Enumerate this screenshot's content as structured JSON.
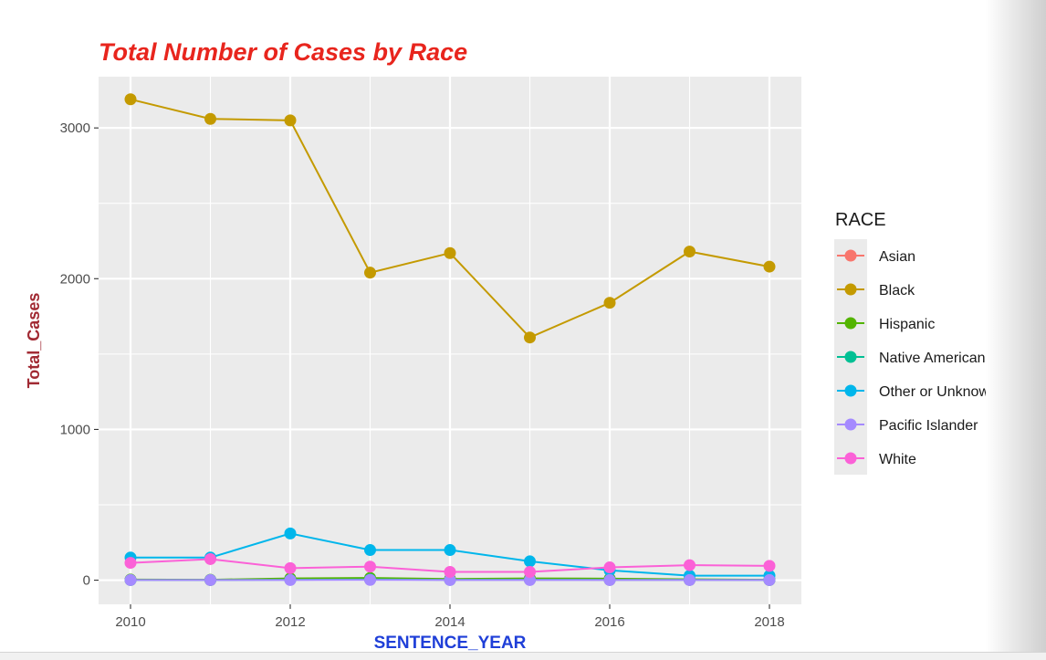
{
  "chart_data": {
    "type": "line",
    "title": "Total Number of Cases by Race",
    "xlabel": "SENTENCE_YEAR",
    "ylabel": "Total_Cases",
    "x": [
      2010,
      2011,
      2012,
      2013,
      2014,
      2015,
      2016,
      2017,
      2018
    ],
    "xlim": [
      2009.6,
      2018.4
    ],
    "ylim": [
      -160,
      3340
    ],
    "x_ticks": [
      2010,
      2012,
      2014,
      2016,
      2018
    ],
    "y_ticks": [
      0,
      1000,
      2000,
      3000
    ],
    "grid": true,
    "legend_title": "RACE",
    "legend_position": "right",
    "series": [
      {
        "name": "Asian",
        "color": "#F8766D",
        "values": [
          2,
          1,
          6,
          5,
          3,
          3,
          2,
          2,
          1
        ]
      },
      {
        "name": "Black",
        "color": "#C49A00",
        "values": [
          3190,
          3060,
          3050,
          2040,
          2170,
          1610,
          1840,
          2180,
          2080
        ]
      },
      {
        "name": "Hispanic",
        "color": "#53B400",
        "values": [
          4,
          3,
          12,
          15,
          8,
          12,
          10,
          6,
          3
        ]
      },
      {
        "name": "Native American",
        "color": "#00C094",
        "values": [
          1,
          1,
          3,
          5,
          2,
          3,
          2,
          2,
          1
        ]
      },
      {
        "name": "Other or Unknown",
        "color": "#00B6EB",
        "values": [
          150,
          150,
          310,
          200,
          200,
          125,
          65,
          30,
          30
        ]
      },
      {
        "name": "Pacific Islander",
        "color": "#A58AFF",
        "values": [
          1,
          1,
          1,
          2,
          1,
          1,
          1,
          1,
          1
        ]
      },
      {
        "name": "White",
        "color": "#FB61D7",
        "values": [
          115,
          140,
          80,
          90,
          55,
          55,
          85,
          100,
          95
        ]
      }
    ]
  },
  "colors": {
    "title": "#E8251D",
    "xlabel": "#1F3FD8",
    "ylabel": "#A12A33",
    "panel_background": "#EBEBEB",
    "grid": "#FFFFFF"
  }
}
